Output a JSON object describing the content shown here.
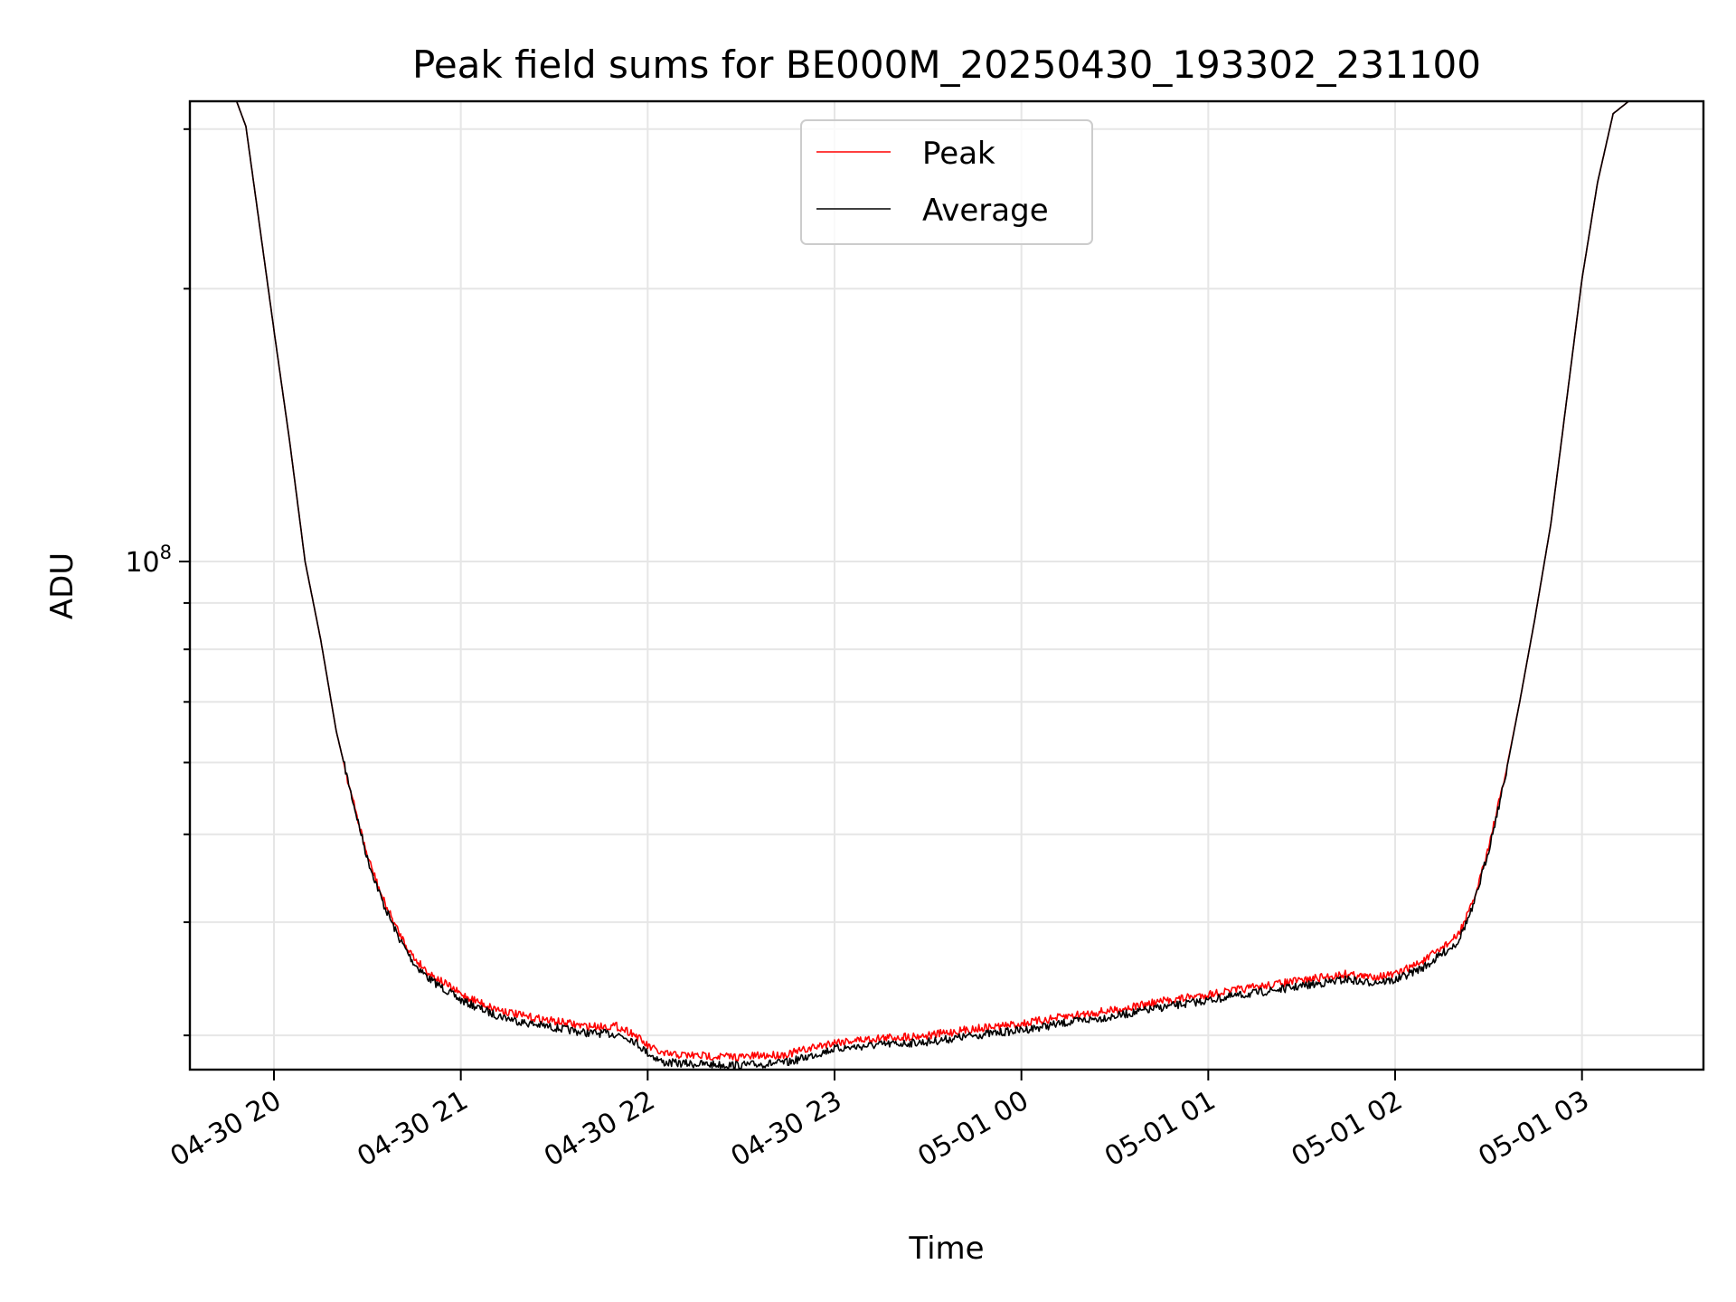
{
  "chart_data": {
    "type": "line",
    "title": "Peak field sums for BE000M_20250430_193302_231100",
    "xlabel": "Time",
    "ylabel": "ADU",
    "y_scale": "log",
    "ylim": [
      27500000,
      322000000
    ],
    "xlim": [
      "2025-04-30 19:33",
      "2025-05-01 03:39"
    ],
    "grid": true,
    "legend_position": "top-center",
    "x_ticks": [
      {
        "label": "04-30 20",
        "x": "2025-04-30 20:00"
      },
      {
        "label": "04-30 21",
        "x": "2025-04-30 21:00"
      },
      {
        "label": "04-30 22",
        "x": "2025-04-30 22:00"
      },
      {
        "label": "04-30 23",
        "x": "2025-04-30 23:00"
      },
      {
        "label": "05-01 00",
        "x": "2025-05-01 00:00"
      },
      {
        "label": "05-01 01",
        "x": "2025-05-01 01:00"
      },
      {
        "label": "05-01 02",
        "x": "2025-05-01 02:00"
      },
      {
        "label": "05-01 03",
        "x": "2025-05-01 03:00"
      }
    ],
    "y_major_ticks": [
      {
        "base": "10",
        "exp": "8",
        "value": 100000000
      }
    ],
    "y_minor_ticks": [
      30000000,
      40000000,
      50000000,
      60000000,
      70000000,
      80000000,
      90000000,
      200000000,
      300000000
    ],
    "series": [
      {
        "name": "Average",
        "color": "#000000",
        "points": [
          [
            "2025-04-30 19:33",
            322000000
          ],
          [
            "2025-04-30 19:48",
            322000000
          ],
          [
            "2025-04-30 19:51",
            302000000
          ],
          [
            "2025-04-30 19:55",
            240000000
          ],
          [
            "2025-04-30 20:00",
            180000000
          ],
          [
            "2025-04-30 20:05",
            136000000
          ],
          [
            "2025-04-30 20:10",
            100000000
          ],
          [
            "2025-04-30 20:15",
            82000000
          ],
          [
            "2025-04-30 20:20",
            65000000
          ],
          [
            "2025-04-30 20:25",
            55000000
          ],
          [
            "2025-04-30 20:30",
            47000000
          ],
          [
            "2025-04-30 20:35",
            42000000
          ],
          [
            "2025-04-30 20:40",
            38500000
          ],
          [
            "2025-04-30 20:45",
            36000000
          ],
          [
            "2025-04-30 20:50",
            34600000
          ],
          [
            "2025-04-30 20:55",
            33700000
          ],
          [
            "2025-04-30 21:00",
            32800000
          ],
          [
            "2025-04-30 21:10",
            31700000
          ],
          [
            "2025-04-30 21:20",
            31000000
          ],
          [
            "2025-04-30 21:30",
            30600000
          ],
          [
            "2025-04-30 21:40",
            30200000
          ],
          [
            "2025-04-30 21:50",
            30100000
          ],
          [
            "2025-04-30 21:55",
            29700000
          ],
          [
            "2025-04-30 22:00",
            28700000
          ],
          [
            "2025-04-30 22:05",
            28000000
          ],
          [
            "2025-04-30 22:15",
            27900000
          ],
          [
            "2025-04-30 22:30",
            27800000
          ],
          [
            "2025-04-30 22:45",
            28000000
          ],
          [
            "2025-04-30 23:00",
            29000000
          ],
          [
            "2025-04-30 23:15",
            29300000
          ],
          [
            "2025-04-30 23:30",
            29500000
          ],
          [
            "2025-04-30 23:45",
            30000000
          ],
          [
            "2025-05-01 00:00",
            30400000
          ],
          [
            "2025-05-01 00:15",
            31000000
          ],
          [
            "2025-05-01 00:30",
            31500000
          ],
          [
            "2025-05-01 00:45",
            32200000
          ],
          [
            "2025-05-01 01:00",
            32800000
          ],
          [
            "2025-05-01 01:15",
            33400000
          ],
          [
            "2025-05-01 01:30",
            34000000
          ],
          [
            "2025-05-01 01:45",
            34600000
          ],
          [
            "2025-05-01 01:50",
            34300000
          ],
          [
            "2025-05-01 02:00",
            34500000
          ],
          [
            "2025-05-01 02:10",
            35800000
          ],
          [
            "2025-05-01 02:20",
            38000000
          ],
          [
            "2025-05-01 02:25",
            41500000
          ],
          [
            "2025-05-01 02:30",
            48000000
          ],
          [
            "2025-05-01 02:35",
            57000000
          ],
          [
            "2025-05-01 02:40",
            70000000
          ],
          [
            "2025-05-01 02:45",
            87000000
          ],
          [
            "2025-05-01 02:50",
            110000000
          ],
          [
            "2025-05-01 02:55",
            150000000
          ],
          [
            "2025-05-01 03:00",
            205000000
          ],
          [
            "2025-05-01 03:05",
            262000000
          ],
          [
            "2025-05-01 03:10",
            312000000
          ],
          [
            "2025-05-01 03:15",
            322000000
          ],
          [
            "2025-05-01 03:39",
            322000000
          ]
        ]
      },
      {
        "name": "Peak",
        "color": "#ff0000",
        "points": [
          [
            "2025-04-30 19:33",
            322000000
          ],
          [
            "2025-04-30 19:48",
            322000000
          ],
          [
            "2025-04-30 19:51",
            302000000
          ],
          [
            "2025-04-30 19:55",
            240000000
          ],
          [
            "2025-04-30 20:00",
            180000000
          ],
          [
            "2025-04-30 20:05",
            136000000
          ],
          [
            "2025-04-30 20:10",
            100000000
          ],
          [
            "2025-04-30 20:15",
            82000000
          ],
          [
            "2025-04-30 20:20",
            65000000
          ],
          [
            "2025-04-30 20:25",
            55000000
          ],
          [
            "2025-04-30 20:30",
            47300000
          ],
          [
            "2025-04-30 20:35",
            42400000
          ],
          [
            "2025-04-30 20:40",
            39000000
          ],
          [
            "2025-04-30 20:45",
            36500000
          ],
          [
            "2025-04-30 20:50",
            35100000
          ],
          [
            "2025-04-30 20:55",
            34200000
          ],
          [
            "2025-04-30 21:00",
            33300000
          ],
          [
            "2025-04-30 21:10",
            32200000
          ],
          [
            "2025-04-30 21:20",
            31500000
          ],
          [
            "2025-04-30 21:30",
            31100000
          ],
          [
            "2025-04-30 21:40",
            30700000
          ],
          [
            "2025-04-30 21:50",
            30700000
          ],
          [
            "2025-04-30 21:55",
            30200000
          ],
          [
            "2025-04-30 22:00",
            29200000
          ],
          [
            "2025-04-30 22:05",
            28600000
          ],
          [
            "2025-04-30 22:15",
            28500000
          ],
          [
            "2025-04-30 22:30",
            28400000
          ],
          [
            "2025-04-30 22:45",
            28600000
          ],
          [
            "2025-04-30 23:00",
            29500000
          ],
          [
            "2025-04-30 23:15",
            29800000
          ],
          [
            "2025-04-30 23:30",
            30000000
          ],
          [
            "2025-04-30 23:45",
            30500000
          ],
          [
            "2025-05-01 00:00",
            30900000
          ],
          [
            "2025-05-01 00:15",
            31500000
          ],
          [
            "2025-05-01 00:30",
            32000000
          ],
          [
            "2025-05-01 00:45",
            32700000
          ],
          [
            "2025-05-01 01:00",
            33300000
          ],
          [
            "2025-05-01 01:15",
            33900000
          ],
          [
            "2025-05-01 01:30",
            34500000
          ],
          [
            "2025-05-01 01:45",
            35100000
          ],
          [
            "2025-05-01 01:50",
            34800000
          ],
          [
            "2025-05-01 02:00",
            35000000
          ],
          [
            "2025-05-01 02:10",
            36400000
          ],
          [
            "2025-05-01 02:20",
            38600000
          ],
          [
            "2025-05-01 02:25",
            42000000
          ],
          [
            "2025-05-01 02:30",
            48400000
          ],
          [
            "2025-05-01 02:35",
            57300000
          ],
          [
            "2025-05-01 02:40",
            70000000
          ],
          [
            "2025-05-01 02:45",
            87000000
          ],
          [
            "2025-05-01 02:50",
            110000000
          ],
          [
            "2025-05-01 02:55",
            150000000
          ],
          [
            "2025-05-01 03:00",
            205000000
          ],
          [
            "2025-05-01 03:05",
            262000000
          ],
          [
            "2025-05-01 03:10",
            312000000
          ],
          [
            "2025-05-01 03:15",
            322000000
          ],
          [
            "2025-05-01 03:39",
            322000000
          ]
        ]
      }
    ],
    "legend": [
      {
        "name": "Peak",
        "color": "#ff0000"
      },
      {
        "name": "Average",
        "color": "#000000"
      }
    ]
  }
}
